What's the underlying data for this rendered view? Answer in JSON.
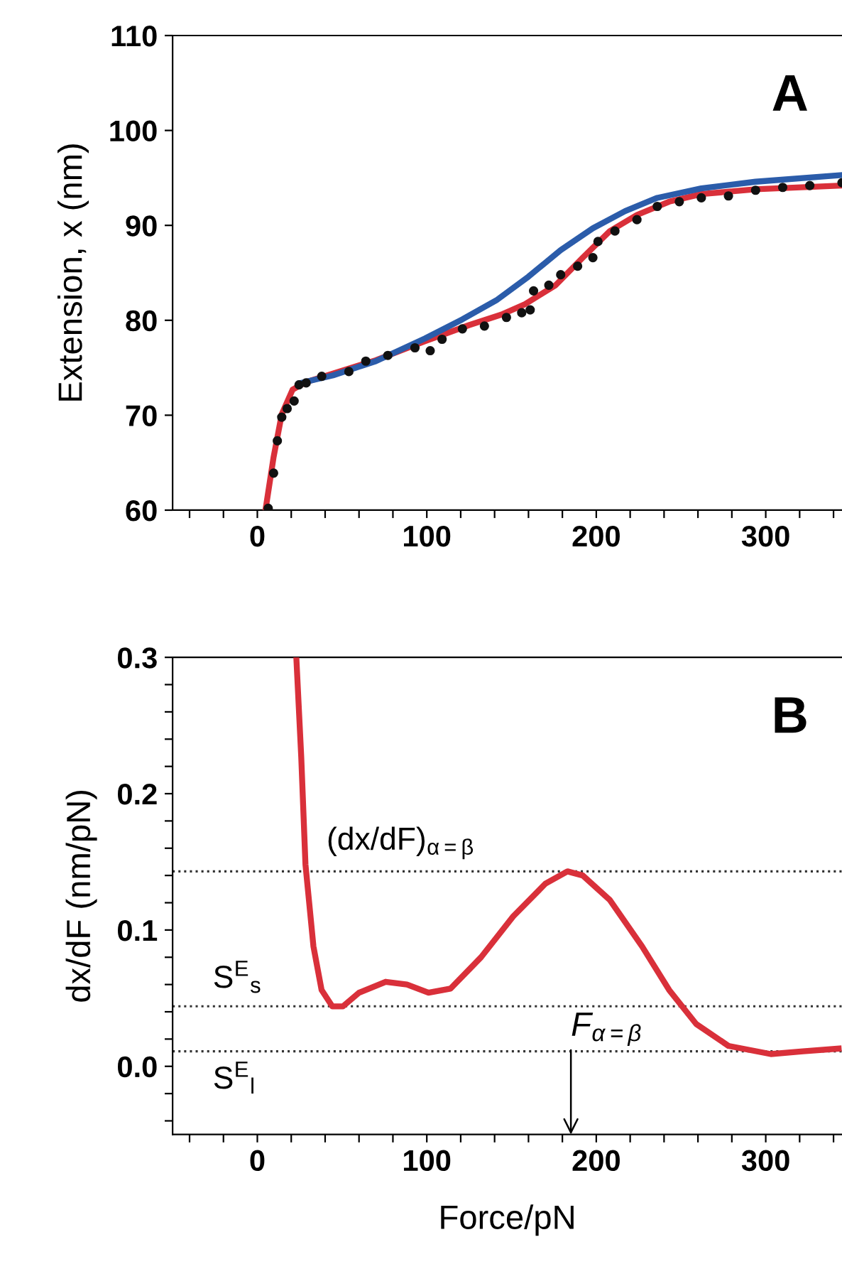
{
  "chart_data": [
    {
      "type": "line",
      "ylabel": "Extension, x (nm)",
      "annotations": [
        "A"
      ],
      "tick_labels": true,
      "xlim": [
        -50,
        345
      ],
      "xticks": [
        {
          "value": -40,
          "label": null
        },
        {
          "value": -20,
          "label": null
        },
        0,
        {
          "value": 20,
          "label": null
        },
        {
          "value": 40,
          "label": null
        },
        {
          "value": 60,
          "label": null
        },
        {
          "value": 80,
          "label": null
        },
        100,
        {
          "value": 120,
          "label": null
        },
        {
          "value": 140,
          "label": null
        },
        {
          "value": 160,
          "label": null
        },
        {
          "value": 180,
          "label": null
        },
        200,
        {
          "value": 220,
          "label": null
        },
        {
          "value": 240,
          "label": null
        },
        {
          "value": 260,
          "label": null
        },
        {
          "value": 280,
          "label": null
        },
        300,
        {
          "value": 320,
          "label": null
        },
        {
          "value": 340,
          "label": null
        }
      ],
      "ylim": [
        60,
        110
      ],
      "yticks": [
        60,
        70,
        80,
        90,
        100,
        110
      ],
      "grid": false,
      "legend": false,
      "series": [
        {
          "type": "line",
          "color": "#d9303a",
          "x": [
            4.8,
            9.6,
            14.4,
            20.8,
            28.8,
            44.7,
            70,
            99,
            125,
            144,
            158,
            176,
            192,
            208,
            224,
            243,
            262,
            294,
            345
          ],
          "values": [
            60,
            65.6,
            70.1,
            72.7,
            73.5,
            74.4,
            75.8,
            77.8,
            79.5,
            80.6,
            81.7,
            83.7,
            86.6,
            89.4,
            91.1,
            92.5,
            93.3,
            93.8,
            94.2
          ]
        },
        {
          "type": "scatter",
          "color": "#111111",
          "marker": "circle",
          "x": [
            6.4,
            9.6,
            11.8,
            14.4,
            17.6,
            21.7,
            24.6,
            28.8,
            38,
            54,
            64,
            77,
            93,
            102,
            109,
            121,
            134,
            147,
            156,
            161,
            163,
            172,
            179,
            189,
            198,
            201,
            211,
            224,
            236,
            249,
            262,
            278,
            294,
            310,
            326,
            345
          ],
          "values": [
            60.2,
            63.9,
            67.3,
            69.8,
            70.7,
            71.5,
            73.2,
            73.4,
            74.1,
            74.6,
            75.7,
            76.3,
            77.1,
            76.8,
            78.0,
            79.1,
            79.4,
            80.3,
            80.8,
            81.1,
            83.1,
            83.7,
            84.8,
            85.7,
            86.6,
            88.3,
            89.4,
            90.6,
            92.0,
            92.5,
            92.9,
            93.1,
            93.7,
            94.0,
            94.2,
            94.5
          ]
        },
        {
          "type": "line",
          "color": "#2b5caa",
          "x": [
            25.6,
            44.7,
            70,
            99,
            121,
            141,
            160,
            179,
            198,
            217,
            236,
            262,
            294,
            345
          ],
          "values": [
            73.4,
            74.2,
            75.7,
            78.1,
            80.1,
            82.1,
            84.6,
            87.4,
            89.7,
            91.5,
            92.9,
            93.9,
            94.6,
            95.3
          ]
        }
      ]
    },
    {
      "type": "line",
      "xlabel": "Force/pN",
      "ylabel": "dx/dF (nm/pN)",
      "annotations": [
        "B",
        "F$_{α=β}$"
      ],
      "xlim": [
        -50,
        345
      ],
      "xticks": [
        {
          "value": -40,
          "label": null
        },
        {
          "value": -20,
          "label": null
        },
        0,
        {
          "value": 20,
          "label": null
        },
        {
          "value": 40,
          "label": null
        },
        {
          "value": 60,
          "label": null
        },
        {
          "value": 80,
          "label": null
        },
        100,
        {
          "value": 120,
          "label": null
        },
        {
          "value": 140,
          "label": null
        },
        {
          "value": 160,
          "label": null
        },
        {
          "value": 180,
          "label": null
        },
        200,
        {
          "value": 220,
          "label": null
        },
        {
          "value": 240,
          "label": null
        },
        {
          "value": 260,
          "label": null
        },
        {
          "value": 280,
          "label": null
        },
        300,
        {
          "value": 320,
          "label": null
        },
        {
          "value": 340,
          "label": null
        }
      ],
      "ylim": [
        -0.05,
        0.3
      ],
      "yticks": [
        {
          "value": -0.04,
          "label": null
        },
        {
          "value": -0.02,
          "label": null
        },
        {
          "value": 0,
          "label": "0.0"
        },
        {
          "value": 0.02,
          "label": null
        },
        {
          "value": 0.04,
          "label": null
        },
        {
          "value": 0.06,
          "label": null
        },
        {
          "value": 0.08,
          "label": null
        },
        0.1,
        {
          "value": 0.12,
          "label": null
        },
        {
          "value": 0.14,
          "label": null
        },
        {
          "value": 0.16,
          "label": null
        },
        {
          "value": 0.18,
          "label": null
        },
        0.2,
        {
          "value": 0.22,
          "label": null
        },
        {
          "value": 0.24,
          "label": null
        },
        {
          "value": 0.26,
          "label": null
        },
        {
          "value": 0.28,
          "label": null
        },
        0.3
      ],
      "grid": false,
      "legend": false,
      "ref_lines": [
        {
          "axis": "y",
          "value": 0.143,
          "label": "(dx/dF)$_{α=β}$",
          "color": "#333333",
          "line_style": "dotted"
        },
        {
          "axis": "y",
          "value": 0.044,
          "label": "S$^{E}$$_{s}$",
          "color": "#333333",
          "line_style": "dotted"
        },
        {
          "axis": "y",
          "value": 0.011,
          "label": "S$^{E}$$_{l}$",
          "color": "#333333",
          "line_style": "dotted"
        }
      ],
      "series": [
        {
          "type": "line",
          "color": "#d9303a",
          "x": [
            23,
            25.9,
            28.4,
            33.1,
            37.9,
            44.2,
            50.5,
            60,
            75.7,
            88.3,
            101,
            114,
            132,
            151,
            170,
            183,
            192,
            208,
            227,
            243,
            259,
            278,
            303,
            322,
            343
          ],
          "values": [
            0.3,
            0.227,
            0.148,
            0.088,
            0.056,
            0.044,
            0.044,
            0.054,
            0.062,
            0.06,
            0.054,
            0.057,
            0.08,
            0.11,
            0.134,
            0.143,
            0.14,
            0.122,
            0.088,
            0.056,
            0.031,
            0.015,
            0.009,
            0.011,
            0.013
          ]
        }
      ]
    }
  ]
}
